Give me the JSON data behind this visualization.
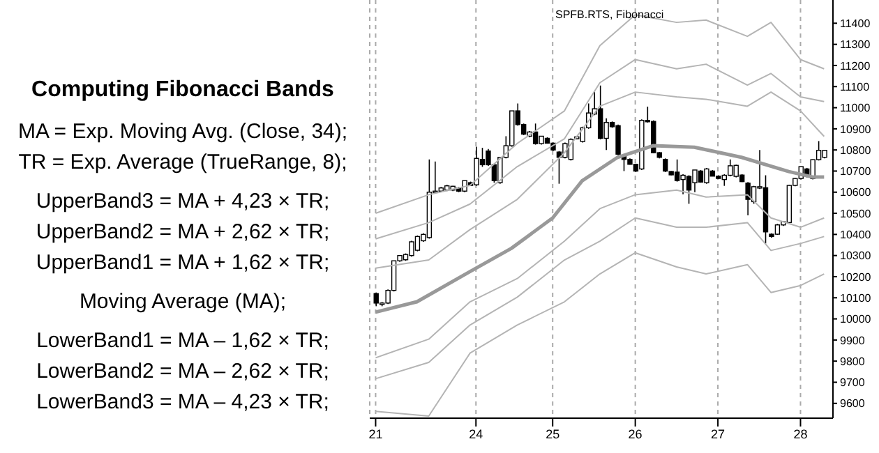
{
  "chart_data": {
    "type": "candlestick",
    "title": "Computing Fibonacci Bands",
    "subtitle": "SPFB.RTS, Fibonacci",
    "annotations": [
      "MA = Exp. Moving Avg. (Close, 34);",
      "TR = Exp. Average (TrueRange, 8);",
      "UpperBand3 = MA + 4,23 × TR;",
      "UpperBand2 = MA + 2,62 × TR;",
      "UpperBand1 = MA + 1,62 × TR;",
      "Moving Average (MA);",
      "LowerBand1 = MA – 1,62 × TR;",
      "LowerBand2 = MA – 2,62 × TR;",
      "LowerBand3 = MA – 4,23 × TR;"
    ],
    "color": "#000000",
    "categories": [
      "21",
      null,
      null,
      null,
      null,
      null,
      null,
      null,
      null,
      null,
      null,
      null,
      null,
      null,
      null,
      null,
      null,
      "24",
      null,
      null,
      null,
      null,
      null,
      null,
      null,
      null,
      null,
      null,
      null,
      null,
      "25",
      null,
      null,
      null,
      null,
      null,
      null,
      null,
      null,
      null,
      null,
      null,
      null,
      null,
      "26",
      null,
      null,
      null,
      null,
      null,
      null,
      null,
      null,
      null,
      null,
      null,
      null,
      null,
      "27",
      null,
      null,
      null,
      null,
      null,
      null,
      null,
      null,
      null,
      null,
      null,
      null,
      null,
      "28",
      null,
      null,
      null,
      null
    ],
    "ohlc": [
      [
        10120,
        10125,
        10060,
        10075
      ],
      [
        10070,
        10080,
        10060,
        10075
      ],
      [
        10075,
        10140,
        10070,
        10135
      ],
      [
        10135,
        10275,
        10130,
        10275
      ],
      [
        10275,
        10300,
        10270,
        10300
      ],
      [
        10280,
        10310,
        10275,
        10305
      ],
      [
        10300,
        10370,
        10295,
        10365
      ],
      [
        10325,
        10395,
        10320,
        10390
      ],
      [
        10370,
        10405,
        10365,
        10400
      ],
      [
        10385,
        10755,
        10380,
        10600
      ],
      [
        10600,
        10745,
        10595,
        10605
      ],
      [
        10605,
        10625,
        10600,
        10620
      ],
      [
        10610,
        10635,
        10605,
        10630
      ],
      [
        10610,
        10630,
        10605,
        10628
      ],
      [
        10620,
        10625,
        10600,
        10605
      ],
      [
        10605,
        10655,
        10600,
        10655
      ],
      [
        10645,
        10650,
        10630,
        10632
      ],
      [
        10635,
        10815,
        10630,
        10760
      ],
      [
        10755,
        10810,
        10720,
        10730
      ],
      [
        10795,
        10805,
        10725,
        10730
      ],
      [
        10730,
        10735,
        10645,
        10655
      ],
      [
        10645,
        10765,
        10640,
        10765
      ],
      [
        10765,
        10865,
        10760,
        10820
      ],
      [
        10820,
        10985,
        10815,
        10985
      ],
      [
        10985,
        11020,
        10915,
        10920
      ],
      [
        10920,
        10925,
        10870,
        10875
      ],
      [
        10865,
        10890,
        10860,
        10885
      ],
      [
        10885,
        10925,
        10825,
        10830
      ],
      [
        10830,
        10865,
        10825,
        10865
      ],
      [
        10855,
        10860,
        10830,
        10832
      ],
      [
        10832,
        10835,
        10795,
        10800
      ],
      [
        10790,
        10795,
        10640,
        10765
      ],
      [
        10765,
        10835,
        10760,
        10830
      ],
      [
        10755,
        10855,
        10750,
        10850
      ],
      [
        10853,
        10865,
        10850,
        10862
      ],
      [
        10840,
        10910,
        10835,
        10905
      ],
      [
        10905,
        11020,
        10900,
        10975
      ],
      [
        10970,
        11075,
        10965,
        10995
      ],
      [
        10995,
        11105,
        10850,
        10855
      ],
      [
        10855,
        10950,
        10800,
        10930
      ],
      [
        10930,
        10935,
        10905,
        10910
      ],
      [
        10915,
        10920,
        10775,
        10780
      ],
      [
        10770,
        10775,
        10700,
        10755
      ],
      [
        10755,
        10760,
        10730,
        10732
      ],
      [
        10732,
        10735,
        10695,
        10700
      ],
      [
        10710,
        10945,
        10705,
        10940
      ],
      [
        10940,
        11005,
        10930,
        10935
      ],
      [
        10935,
        10940,
        10785,
        10787
      ],
      [
        10787,
        10790,
        10760,
        10765
      ],
      [
        10755,
        10760,
        10695,
        10700
      ],
      [
        10698,
        10700,
        10680,
        10682
      ],
      [
        10695,
        10755,
        10650,
        10655
      ],
      [
        10660,
        10685,
        10590,
        10680
      ],
      [
        10675,
        10680,
        10545,
        10610
      ],
      [
        10645,
        10705,
        10600,
        10705
      ],
      [
        10700,
        10705,
        10645,
        10648
      ],
      [
        10645,
        10715,
        10640,
        10710
      ],
      [
        10700,
        10705,
        10675,
        10676
      ],
      [
        10676,
        10680,
        10662,
        10665
      ],
      [
        10660,
        10685,
        10630,
        10680
      ],
      [
        10680,
        10755,
        10675,
        10725
      ],
      [
        10675,
        10730,
        10670,
        10727
      ],
      [
        10681,
        10685,
        10648,
        10650
      ],
      [
        10643,
        10648,
        10490,
        10566
      ],
      [
        10555,
        10630,
        10545,
        10626
      ],
      [
        10621,
        10800,
        10615,
        10626
      ],
      [
        10621,
        10680,
        10357,
        10412
      ],
      [
        10401,
        10405,
        10385,
        10390
      ],
      [
        10401,
        10450,
        10398,
        10445
      ],
      [
        10445,
        10462,
        10440,
        10460
      ],
      [
        10456,
        10635,
        10450,
        10632
      ],
      [
        10632,
        10668,
        10628,
        10665
      ],
      [
        10665,
        10722,
        10660,
        10721
      ],
      [
        10710,
        10715,
        10670,
        10676
      ],
      [
        10665,
        10755,
        10660,
        10754
      ],
      [
        10754,
        10842,
        10750,
        10798
      ],
      [
        10765,
        10800,
        10760,
        10798
      ]
    ],
    "series": [
      {
        "type": "line",
        "color": "#b4b4b4",
        "values": [
          10500,
          null,
          null,
          null,
          null,
          null,
          null,
          null,
          null,
          10588,
          null,
          null,
          null,
          null,
          null,
          null,
          10632,
          null,
          null,
          null,
          null,
          null,
          null,
          null,
          10831,
          null,
          null,
          null,
          null,
          null,
          null,
          null,
          10985,
          null,
          null,
          null,
          null,
          null,
          11294,
          null,
          null,
          null,
          null,
          null,
          11440,
          null,
          null,
          null,
          null,
          null,
          null,
          11404,
          null,
          null,
          null,
          null,
          11415,
          null,
          null,
          null,
          null,
          null,
          null,
          11338,
          null,
          null,
          null,
          11404,
          null,
          null,
          null,
          null,
          11228,
          null,
          null,
          null,
          11184
        ]
      },
      {
        "type": "line",
        "color": "#b4b4b4",
        "values": [
          10379,
          null,
          null,
          null,
          null,
          null,
          null,
          null,
          null,
          10456,
          null,
          null,
          null,
          null,
          null,
          null,
          10544,
          null,
          null,
          null,
          null,
          null,
          null,
          null,
          10721,
          null,
          null,
          null,
          null,
          null,
          null,
          null,
          10853,
          null,
          null,
          null,
          null,
          null,
          11118,
          null,
          null,
          null,
          null,
          null,
          11228,
          null,
          null,
          null,
          null,
          null,
          null,
          11184,
          null,
          null,
          null,
          null,
          11206,
          null,
          null,
          null,
          null,
          null,
          null,
          11107,
          null,
          null,
          null,
          11162,
          null,
          null,
          null,
          null,
          11051,
          null,
          null,
          null,
          11029
        ]
      },
      {
        "type": "line",
        "color": "#b4b4b4",
        "values": [
          10240,
          null,
          null,
          null,
          null,
          null,
          null,
          null,
          null,
          10279,
          null,
          null,
          null,
          null,
          null,
          null,
          10423,
          null,
          null,
          null,
          null,
          null,
          null,
          null,
          10566,
          null,
          null,
          null,
          null,
          null,
          null,
          null,
          10787,
          null,
          null,
          null,
          null,
          null,
          11007,
          null,
          null,
          null,
          null,
          null,
          11074,
          null,
          null,
          null,
          null,
          null,
          null,
          11051,
          null,
          null,
          null,
          null,
          11040,
          null,
          null,
          null,
          null,
          null,
          null,
          11007,
          null,
          null,
          null,
          11074,
          null,
          null,
          null,
          null,
          10985,
          null,
          null,
          null,
          10864
        ]
      },
      {
        "type": "line",
        "color": "#999999",
        "values": [
          10032,
          null,
          null,
          null,
          null,
          null,
          null,
          10081,
          null,
          null,
          null,
          null,
          null,
          null,
          null,
          null,
          10224,
          null,
          null,
          null,
          null,
          null,
          null,
          10334,
          null,
          null,
          null,
          null,
          null,
          null,
          10478,
          null,
          null,
          null,
          null,
          10654,
          null,
          null,
          null,
          null,
          null,
          10765,
          null,
          null,
          null,
          null,
          null,
          10820,
          null,
          null,
          null,
          null,
          null,
          null,
          10813,
          null,
          null,
          null,
          null,
          null,
          null,
          null,
          10765,
          null,
          null,
          null,
          null,
          null,
          null,
          null,
          10698,
          null,
          null,
          null,
          10672,
          null,
          10672
        ]
      },
      {
        "type": "line",
        "color": "#b4b4b4",
        "values": [
          9816,
          null,
          null,
          null,
          null,
          null,
          null,
          null,
          null,
          9904,
          null,
          null,
          null,
          null,
          null,
          null,
          10081,
          null,
          null,
          null,
          null,
          null,
          null,
          null,
          10191,
          null,
          null,
          null,
          null,
          null,
          null,
          null,
          10368,
          null,
          null,
          null,
          null,
          null,
          10522,
          null,
          null,
          null,
          null,
          null,
          10588,
          null,
          null,
          null,
          null,
          null,
          null,
          10610,
          null,
          null,
          null,
          null,
          10577,
          null,
          null,
          null,
          null,
          null,
          null,
          10588,
          null,
          null,
          null,
          10478,
          null,
          null,
          null,
          null,
          10434,
          null,
          null,
          null,
          10478
        ]
      },
      {
        "type": "line",
        "color": "#b4b4b4",
        "values": [
          9717,
          null,
          null,
          null,
          null,
          null,
          null,
          null,
          null,
          9794,
          null,
          null,
          null,
          null,
          null,
          null,
          9971,
          null,
          null,
          null,
          null,
          null,
          null,
          null,
          10103,
          null,
          null,
          null,
          null,
          null,
          null,
          null,
          10279,
          null,
          null,
          null,
          null,
          null,
          10368,
          null,
          null,
          null,
          null,
          null,
          10478,
          null,
          null,
          null,
          null,
          null,
          null,
          10434,
          null,
          null,
          null,
          null,
          10434,
          null,
          null,
          null,
          null,
          null,
          null,
          10456,
          null,
          null,
          null,
          10324,
          null,
          null,
          null,
          null,
          10357,
          null,
          null,
          null,
          10390
        ]
      },
      {
        "type": "line",
        "color": "#b4b4b4",
        "values": [
          9562,
          null,
          null,
          null,
          null,
          null,
          null,
          null,
          null,
          9540,
          null,
          null,
          null,
          null,
          null,
          null,
          9838,
          null,
          null,
          null,
          null,
          null,
          null,
          null,
          9971,
          null,
          null,
          null,
          null,
          null,
          null,
          null,
          10081,
          null,
          null,
          null,
          null,
          null,
          10213,
          null,
          null,
          null,
          null,
          null,
          10313,
          null,
          null,
          null,
          null,
          null,
          null,
          10246,
          null,
          null,
          null,
          null,
          10213,
          null,
          null,
          null,
          null,
          null,
          null,
          10257,
          null,
          null,
          null,
          10125,
          null,
          null,
          null,
          null,
          10158,
          null,
          null,
          null,
          10213
        ]
      }
    ],
    "ylim": [
      9530,
      11510
    ],
    "yticks": [
      9600,
      9700,
      9800,
      9900,
      10000,
      10100,
      10200,
      10300,
      10400,
      10500,
      10600,
      10700,
      10800,
      10900,
      11000,
      11100,
      11200,
      11300,
      11400
    ],
    "grid": "x"
  }
}
